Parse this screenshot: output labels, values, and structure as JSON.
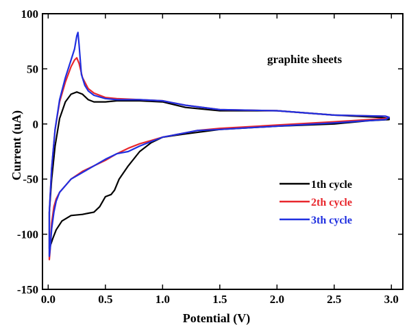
{
  "chart_data": {
    "type": "line",
    "xlabel": "Potential (V)",
    "ylabel": "Current (uA)",
    "xlim": [
      -0.05,
      3.1
    ],
    "ylim": [
      -150,
      100
    ],
    "xticks": [
      0.0,
      0.5,
      1.0,
      1.5,
      2.0,
      2.5,
      3.0
    ],
    "xtick_labels": [
      "0.0",
      "0.5",
      "1.0",
      "1.5",
      "2.0",
      "2.5",
      "3.0"
    ],
    "yticks": [
      -150,
      -100,
      -50,
      0,
      50,
      100
    ],
    "ytick_labels": [
      "-150",
      "-100",
      "-50",
      "0",
      "50",
      "100"
    ],
    "annotation": "graphite sheets",
    "legend_position": "bottom-right",
    "grid": false,
    "series": [
      {
        "name": "1th cycle",
        "color": "#000000",
        "x": [
          0.01,
          0.03,
          0.06,
          0.1,
          0.15,
          0.2,
          0.25,
          0.3,
          0.35,
          0.4,
          0.5,
          0.6,
          0.8,
          1.0,
          1.2,
          1.5,
          2.0,
          2.5,
          2.9,
          2.98,
          2.98,
          2.8,
          2.5,
          2.0,
          1.5,
          1.2,
          1.0,
          0.9,
          0.8,
          0.7,
          0.62,
          0.58,
          0.55,
          0.5,
          0.45,
          0.4,
          0.35,
          0.3,
          0.2,
          0.12,
          0.07,
          0.04,
          0.02,
          0.01,
          0.01
        ],
        "y": [
          -80,
          -50,
          -20,
          5,
          20,
          27,
          29,
          27,
          22,
          20,
          20,
          21,
          21,
          20,
          15,
          12,
          12,
          8,
          6,
          5,
          4,
          3,
          0,
          -2,
          -5,
          -9,
          -12,
          -17,
          -25,
          -38,
          -50,
          -60,
          -64,
          -66,
          -75,
          -80,
          -81,
          -82,
          -83,
          -88,
          -96,
          -104,
          -110,
          -113,
          -80
        ]
      },
      {
        "name": "2th cycle",
        "color": "#e8262c",
        "x": [
          0.01,
          0.03,
          0.06,
          0.1,
          0.15,
          0.2,
          0.23,
          0.25,
          0.27,
          0.3,
          0.35,
          0.4,
          0.5,
          0.6,
          0.8,
          1.0,
          1.2,
          1.5,
          2.0,
          2.5,
          2.95,
          2.98,
          2.95,
          2.5,
          2.0,
          1.5,
          1.3,
          1.2,
          1.0,
          0.9,
          0.8,
          0.7,
          0.6,
          0.5,
          0.4,
          0.3,
          0.2,
          0.15,
          0.1,
          0.07,
          0.05,
          0.03,
          0.02,
          0.01,
          0.01
        ],
        "y": [
          -80,
          -40,
          -5,
          20,
          38,
          52,
          58,
          60,
          55,
          42,
          32,
          28,
          24,
          23,
          22,
          21,
          17,
          13,
          12,
          8,
          7,
          6,
          5,
          2,
          -1,
          -4,
          -6,
          -8,
          -12,
          -15,
          -18,
          -22,
          -27,
          -33,
          -38,
          -43,
          -50,
          -56,
          -62,
          -68,
          -75,
          -90,
          -110,
          -123,
          -80
        ]
      },
      {
        "name": "3th cycle",
        "color": "#1f2fe0",
        "x": [
          0.01,
          0.03,
          0.06,
          0.1,
          0.15,
          0.2,
          0.23,
          0.25,
          0.26,
          0.27,
          0.29,
          0.32,
          0.35,
          0.4,
          0.5,
          0.6,
          0.8,
          1.0,
          1.2,
          1.5,
          2.0,
          2.5,
          2.95,
          2.98,
          2.95,
          2.5,
          2.0,
          1.5,
          1.3,
          1.2,
          1.0,
          0.9,
          0.8,
          0.7,
          0.6,
          0.5,
          0.4,
          0.3,
          0.2,
          0.15,
          0.1,
          0.07,
          0.05,
          0.03,
          0.02,
          0.01,
          0.01
        ],
        "y": [
          -80,
          -40,
          -5,
          22,
          42,
          58,
          68,
          80,
          83,
          72,
          45,
          35,
          30,
          26,
          23,
          22,
          22,
          21,
          17,
          13,
          12,
          8,
          7,
          6,
          4,
          1,
          -2,
          -5,
          -6,
          -8,
          -12,
          -16,
          -20,
          -25,
          -27,
          -32,
          -38,
          -44,
          -50,
          -56,
          -62,
          -70,
          -80,
          -95,
          -110,
          -120,
          -80
        ]
      }
    ]
  }
}
